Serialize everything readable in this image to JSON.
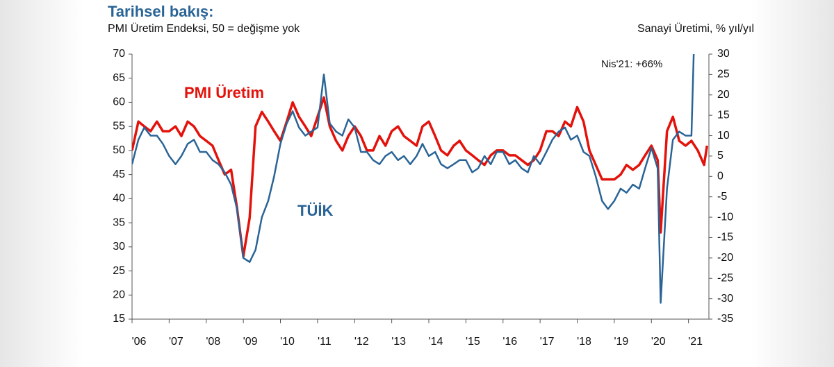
{
  "chart_data": {
    "type": "line",
    "title": "Tarihsel bakış:",
    "subtitle": "PMI Üretim Endeksi, 50 = değişme yok",
    "y2_label": "Sanayi Üretimi, % yıl/yıl",
    "annotation": "Nis'21: +66%",
    "x": [
      2006.0,
      2006.17,
      2006.33,
      2006.5,
      2006.67,
      2006.83,
      2007.0,
      2007.17,
      2007.33,
      2007.5,
      2007.67,
      2007.83,
      2008.0,
      2008.17,
      2008.33,
      2008.5,
      2008.67,
      2008.83,
      2009.0,
      2009.17,
      2009.33,
      2009.5,
      2009.67,
      2009.83,
      2010.0,
      2010.17,
      2010.33,
      2010.5,
      2010.67,
      2010.83,
      2011.0,
      2011.17,
      2011.33,
      2011.5,
      2011.67,
      2011.83,
      2012.0,
      2012.17,
      2012.33,
      2012.5,
      2012.67,
      2012.83,
      2013.0,
      2013.17,
      2013.33,
      2013.5,
      2013.67,
      2013.83,
      2014.0,
      2014.17,
      2014.33,
      2014.5,
      2014.67,
      2014.83,
      2015.0,
      2015.17,
      2015.33,
      2015.5,
      2015.67,
      2015.83,
      2016.0,
      2016.17,
      2016.33,
      2016.5,
      2016.67,
      2016.83,
      2017.0,
      2017.17,
      2017.33,
      2017.5,
      2017.67,
      2017.83,
      2018.0,
      2018.17,
      2018.33,
      2018.5,
      2018.67,
      2018.83,
      2019.0,
      2019.17,
      2019.33,
      2019.5,
      2019.67,
      2019.83,
      2020.0,
      2020.17,
      2020.25,
      2020.42,
      2020.58,
      2020.75,
      2020.92,
      2021.08,
      2021.25,
      2021.42,
      2021.5
    ],
    "series": [
      {
        "name": "PMI Üretim",
        "color": "#e3120b",
        "axis": "y",
        "values": [
          50,
          56,
          55,
          54,
          56,
          54,
          54,
          55,
          53,
          56,
          55,
          53,
          52,
          51,
          48,
          45,
          46,
          38,
          28,
          36,
          55,
          58,
          56,
          54,
          52,
          56,
          60,
          57,
          55,
          53,
          57,
          61,
          55,
          52,
          50,
          53,
          55,
          53,
          50,
          50,
          53,
          51,
          54,
          55,
          53,
          52,
          51,
          55,
          56,
          53,
          50,
          49,
          51,
          52,
          50,
          49,
          48,
          47,
          49,
          50,
          50,
          49,
          49,
          48,
          47,
          48,
          50,
          54,
          54,
          53,
          56,
          55,
          59,
          56,
          50,
          47,
          44,
          44,
          44,
          45,
          47,
          46,
          47,
          49,
          51,
          48,
          33,
          54,
          57,
          52,
          51,
          52,
          50,
          47,
          51
        ]
      },
      {
        "name": "TÜİK",
        "color": "#2a6496",
        "axis": "y2",
        "values": [
          3,
          9,
          12,
          10,
          10,
          8,
          5,
          3,
          5,
          8,
          9,
          6,
          6,
          4,
          3,
          1,
          -2,
          -8,
          -20,
          -21,
          -18,
          -10,
          -6,
          0,
          8,
          13,
          16,
          12,
          10,
          11,
          12,
          25,
          13,
          11,
          10,
          14,
          12,
          6,
          6,
          4,
          3,
          5,
          6,
          4,
          5,
          3,
          5,
          8,
          5,
          6,
          3,
          2,
          3,
          4,
          4,
          1,
          2,
          5,
          3,
          6,
          6,
          3,
          4,
          2,
          1,
          5,
          3,
          6,
          9,
          11,
          12,
          9,
          10,
          6,
          5,
          0,
          -6,
          -8,
          -6,
          -3,
          -4,
          -2,
          -3,
          2,
          7,
          2,
          -31,
          -3,
          9,
          11,
          10,
          10,
          66,
          null,
          null
        ]
      }
    ],
    "xlim": [
      2006,
      2021.55
    ],
    "xticks": [
      {
        "value": 2006,
        "label": "'06"
      },
      {
        "value": 2007,
        "label": "'07"
      },
      {
        "value": 2008,
        "label": "'08"
      },
      {
        "value": 2009,
        "label": "'09"
      },
      {
        "value": 2010,
        "label": "'10"
      },
      {
        "value": 2011,
        "label": "'11"
      },
      {
        "value": 2012,
        "label": "'12"
      },
      {
        "value": 2013,
        "label": "'13"
      },
      {
        "value": 2014,
        "label": "'14"
      },
      {
        "value": 2015,
        "label": "'15"
      },
      {
        "value": 2016,
        "label": "'16"
      },
      {
        "value": 2017,
        "label": "'17"
      },
      {
        "value": 2018,
        "label": "'18"
      },
      {
        "value": 2019,
        "label": "'19"
      },
      {
        "value": 2020,
        "label": "'20"
      },
      {
        "value": 2021,
        "label": "'21"
      }
    ],
    "ylim": [
      15,
      70
    ],
    "yticks": [
      15,
      20,
      25,
      30,
      35,
      40,
      45,
      50,
      55,
      60,
      65,
      70
    ],
    "y2lim": [
      -35,
      30
    ],
    "y2ticks": [
      -35,
      -30,
      -25,
      -20,
      -15,
      -10,
      -5,
      0,
      5,
      10,
      15,
      20,
      25,
      30
    ]
  }
}
